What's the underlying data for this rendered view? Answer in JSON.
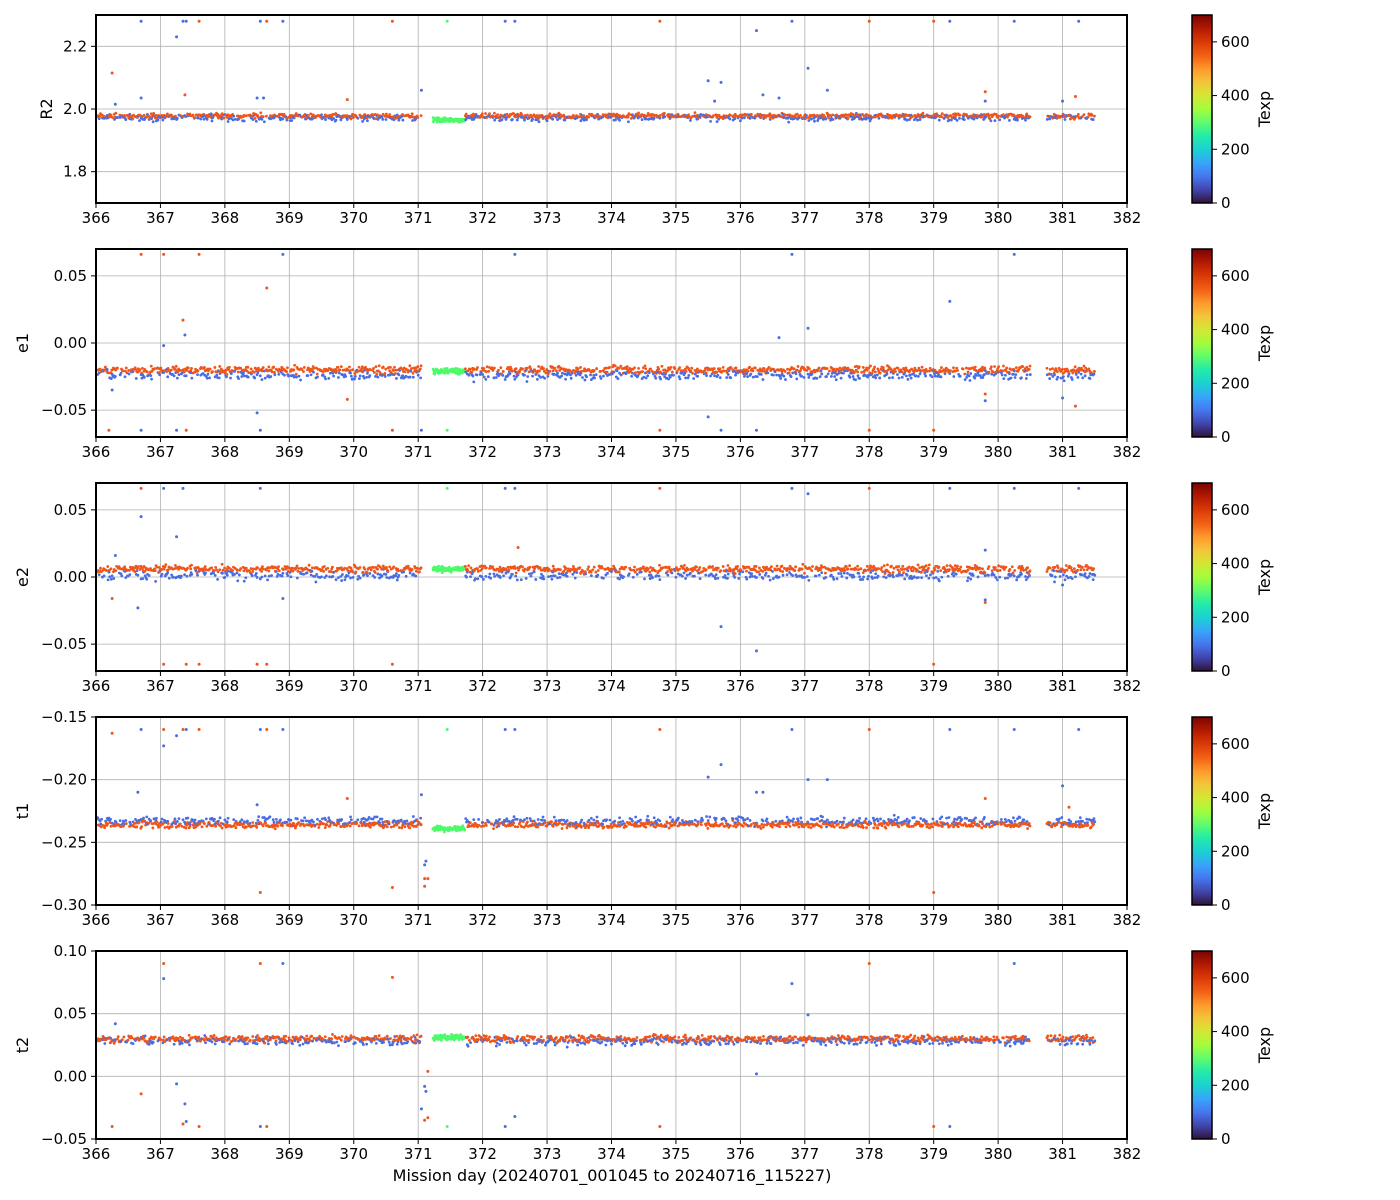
{
  "chart_data": {
    "type": "scatter",
    "shared_xlabel": "Mission day (20240701_001045 to 20240716_115227)",
    "xlim": [
      366,
      382
    ],
    "x_ticks": [
      366,
      367,
      368,
      369,
      370,
      371,
      372,
      373,
      374,
      375,
      376,
      377,
      378,
      379,
      380,
      381,
      382
    ],
    "grid": true,
    "colorbar": {
      "label": "Texp",
      "range": [
        0,
        700
      ],
      "ticks": [
        0,
        200,
        400,
        600
      ],
      "colormap": "turbo"
    },
    "series_colors": {
      "texp_60": "#4a6ee0",
      "texp_600": "#f0561a",
      "texp_300": "#4dfb6a"
    },
    "data_gap": [
      380.5,
      380.75
    ],
    "panels": [
      {
        "ylabel": "R2",
        "ylim": [
          1.7,
          2.3
        ],
        "y_ticks": [
          1.8,
          2.0,
          2.2
        ],
        "y_tick_labels": [
          "1.8",
          "2.0",
          "2.2"
        ],
        "band_orange": 1.978,
        "band_blue": 1.972,
        "band_green": 1.965,
        "spread": 0.012,
        "outliers": [
          [
            366.25,
            2.115,
            "o"
          ],
          [
            366.3,
            2.015,
            "b"
          ],
          [
            366.7,
            2.035,
            "b"
          ],
          [
            366.7,
            2.28,
            "b"
          ],
          [
            367.25,
            2.23,
            "b"
          ],
          [
            367.35,
            2.28,
            "b"
          ],
          [
            367.38,
            2.045,
            "o"
          ],
          [
            367.4,
            2.28,
            "b"
          ],
          [
            367.6,
            2.28,
            "o"
          ],
          [
            368.5,
            2.035,
            "b"
          ],
          [
            368.55,
            2.28,
            "b"
          ],
          [
            368.6,
            2.035,
            "b"
          ],
          [
            368.65,
            2.28,
            "o"
          ],
          [
            368.9,
            2.28,
            "b"
          ],
          [
            369.9,
            2.03,
            "o"
          ],
          [
            370.6,
            2.28,
            "o"
          ],
          [
            371.05,
            2.06,
            "b"
          ],
          [
            371.45,
            2.28,
            "g"
          ],
          [
            372.35,
            2.28,
            "b"
          ],
          [
            372.5,
            2.28,
            "b"
          ],
          [
            374.75,
            2.28,
            "o"
          ],
          [
            375.5,
            2.09,
            "b"
          ],
          [
            375.6,
            2.025,
            "b"
          ],
          [
            375.7,
            2.085,
            "b"
          ],
          [
            376.25,
            2.25,
            "b"
          ],
          [
            376.35,
            2.045,
            "b"
          ],
          [
            376.6,
            2.035,
            "b"
          ],
          [
            376.8,
            2.28,
            "b"
          ],
          [
            377.05,
            2.13,
            "b"
          ],
          [
            377.35,
            2.06,
            "b"
          ],
          [
            378.0,
            2.28,
            "o"
          ],
          [
            379.0,
            2.28,
            "o"
          ],
          [
            379.25,
            2.28,
            "b"
          ],
          [
            379.8,
            2.055,
            "o"
          ],
          [
            379.8,
            2.025,
            "b"
          ],
          [
            380.25,
            2.28,
            "b"
          ],
          [
            381.0,
            2.025,
            "b"
          ],
          [
            381.2,
            2.04,
            "o"
          ],
          [
            381.25,
            2.28,
            "b"
          ]
        ]
      },
      {
        "ylabel": "e1",
        "ylim": [
          -0.07,
          0.07
        ],
        "y_ticks": [
          -0.05,
          0.0,
          0.05
        ],
        "y_tick_labels": [
          "−0.05",
          "0.00",
          "0.05"
        ],
        "band_orange": -0.02,
        "band_blue": -0.024,
        "band_green": -0.021,
        "spread": 0.004,
        "outliers": [
          [
            366.2,
            -0.065,
            "o"
          ],
          [
            366.25,
            -0.035,
            "b"
          ],
          [
            366.7,
            0.066,
            "o"
          ],
          [
            366.7,
            -0.065,
            "b"
          ],
          [
            367.05,
            0.066,
            "o"
          ],
          [
            367.05,
            -0.002,
            "b"
          ],
          [
            367.25,
            -0.065,
            "b"
          ],
          [
            367.35,
            0.017,
            "o"
          ],
          [
            367.38,
            0.006,
            "b"
          ],
          [
            367.4,
            -0.065,
            "o"
          ],
          [
            367.6,
            0.066,
            "o"
          ],
          [
            368.5,
            -0.052,
            "b"
          ],
          [
            368.55,
            -0.065,
            "b"
          ],
          [
            368.65,
            0.041,
            "o"
          ],
          [
            368.9,
            0.066,
            "b"
          ],
          [
            369.9,
            -0.042,
            "o"
          ],
          [
            370.6,
            -0.065,
            "o"
          ],
          [
            371.05,
            -0.065,
            "b"
          ],
          [
            371.45,
            -0.065,
            "g"
          ],
          [
            372.5,
            0.066,
            "b"
          ],
          [
            374.75,
            -0.065,
            "o"
          ],
          [
            375.5,
            -0.055,
            "b"
          ],
          [
            375.7,
            -0.065,
            "b"
          ],
          [
            376.25,
            -0.065,
            "b"
          ],
          [
            376.6,
            0.004,
            "b"
          ],
          [
            376.8,
            0.066,
            "b"
          ],
          [
            377.05,
            0.011,
            "b"
          ],
          [
            378.0,
            -0.065,
            "o"
          ],
          [
            379.0,
            -0.065,
            "o"
          ],
          [
            379.25,
            0.031,
            "b"
          ],
          [
            379.8,
            -0.038,
            "o"
          ],
          [
            379.8,
            -0.043,
            "b"
          ],
          [
            380.25,
            0.066,
            "b"
          ],
          [
            381.0,
            -0.041,
            "b"
          ],
          [
            381.2,
            -0.047,
            "o"
          ]
        ]
      },
      {
        "ylabel": "e2",
        "ylim": [
          -0.07,
          0.07
        ],
        "y_ticks": [
          -0.05,
          0.0,
          0.05
        ],
        "y_tick_labels": [
          "−0.05",
          "0.00",
          "0.05"
        ],
        "band_orange": 0.006,
        "band_blue": 0.001,
        "band_green": 0.006,
        "spread": 0.004,
        "outliers": [
          [
            366.25,
            -0.016,
            "o"
          ],
          [
            366.3,
            0.016,
            "b"
          ],
          [
            366.7,
            0.066,
            "o"
          ],
          [
            366.7,
            0.045,
            "b"
          ],
          [
            366.65,
            -0.023,
            "b"
          ],
          [
            367.05,
            0.066,
            "b"
          ],
          [
            367.05,
            -0.065,
            "o"
          ],
          [
            367.25,
            0.03,
            "b"
          ],
          [
            367.35,
            0.066,
            "b"
          ],
          [
            367.4,
            -0.065,
            "o"
          ],
          [
            367.6,
            -0.065,
            "o"
          ],
          [
            368.5,
            -0.065,
            "o"
          ],
          [
            368.55,
            0.066,
            "b"
          ],
          [
            368.65,
            -0.065,
            "o"
          ],
          [
            368.9,
            -0.016,
            "b"
          ],
          [
            370.6,
            -0.065,
            "o"
          ],
          [
            371.45,
            0.066,
            "g"
          ],
          [
            372.35,
            0.066,
            "b"
          ],
          [
            372.5,
            0.066,
            "b"
          ],
          [
            372.55,
            0.022,
            "o"
          ],
          [
            374.75,
            0.066,
            "o"
          ],
          [
            375.7,
            -0.037,
            "b"
          ],
          [
            376.25,
            -0.055,
            "b"
          ],
          [
            376.8,
            0.066,
            "b"
          ],
          [
            377.05,
            0.062,
            "b"
          ],
          [
            378.0,
            0.066,
            "o"
          ],
          [
            379.0,
            -0.065,
            "o"
          ],
          [
            379.25,
            0.066,
            "b"
          ],
          [
            379.8,
            -0.019,
            "o"
          ],
          [
            379.8,
            -0.017,
            "b"
          ],
          [
            379.8,
            0.02,
            "b"
          ],
          [
            380.25,
            0.066,
            "b"
          ],
          [
            381.0,
            -0.006,
            "b"
          ],
          [
            381.25,
            0.066,
            "b"
          ]
        ]
      },
      {
        "ylabel": "t1",
        "ylim": [
          -0.3,
          -0.15
        ],
        "y_ticks": [
          -0.3,
          -0.25,
          -0.2,
          -0.15
        ],
        "y_tick_labels": [
          "−0.30",
          "−0.25",
          "−0.20",
          "−0.15"
        ],
        "band_orange": -0.236,
        "band_blue": -0.233,
        "band_green": -0.239,
        "spread": 0.004,
        "outliers": [
          [
            366.25,
            -0.163,
            "o"
          ],
          [
            366.7,
            -0.16,
            "b"
          ],
          [
            366.65,
            -0.21,
            "b"
          ],
          [
            367.05,
            -0.16,
            "o"
          ],
          [
            367.05,
            -0.173,
            "b"
          ],
          [
            367.25,
            -0.165,
            "b"
          ],
          [
            367.35,
            -0.16,
            "o"
          ],
          [
            367.4,
            -0.16,
            "b"
          ],
          [
            367.6,
            -0.16,
            "o"
          ],
          [
            368.5,
            -0.22,
            "b"
          ],
          [
            368.55,
            -0.29,
            "o"
          ],
          [
            368.55,
            -0.16,
            "b"
          ],
          [
            368.65,
            -0.16,
            "o"
          ],
          [
            368.9,
            -0.16,
            "b"
          ],
          [
            369.9,
            -0.215,
            "o"
          ],
          [
            370.6,
            -0.286,
            "o"
          ],
          [
            371.05,
            -0.212,
            "b"
          ],
          [
            371.1,
            -0.268,
            "b"
          ],
          [
            371.12,
            -0.265,
            "b"
          ],
          [
            371.1,
            -0.279,
            "o"
          ],
          [
            371.15,
            -0.279,
            "o"
          ],
          [
            371.1,
            -0.285,
            "o"
          ],
          [
            371.45,
            -0.16,
            "g"
          ],
          [
            372.35,
            -0.16,
            "b"
          ],
          [
            372.5,
            -0.16,
            "b"
          ],
          [
            374.75,
            -0.16,
            "o"
          ],
          [
            375.5,
            -0.198,
            "b"
          ],
          [
            375.7,
            -0.188,
            "b"
          ],
          [
            376.25,
            -0.21,
            "b"
          ],
          [
            376.35,
            -0.21,
            "b"
          ],
          [
            376.8,
            -0.16,
            "b"
          ],
          [
            377.05,
            -0.2,
            "b"
          ],
          [
            377.35,
            -0.2,
            "b"
          ],
          [
            378.0,
            -0.16,
            "o"
          ],
          [
            379.0,
            -0.29,
            "o"
          ],
          [
            379.25,
            -0.16,
            "b"
          ],
          [
            379.8,
            -0.215,
            "o"
          ],
          [
            380.25,
            -0.16,
            "b"
          ],
          [
            381.0,
            -0.205,
            "b"
          ],
          [
            381.1,
            -0.222,
            "o"
          ],
          [
            381.25,
            -0.16,
            "b"
          ]
        ]
      },
      {
        "ylabel": "t2",
        "ylim": [
          -0.05,
          0.1
        ],
        "y_ticks": [
          -0.05,
          0.0,
          0.05,
          0.1
        ],
        "y_tick_labels": [
          "−0.05",
          "0.00",
          "0.05",
          "0.10"
        ],
        "band_orange": 0.03,
        "band_blue": 0.028,
        "band_green": 0.031,
        "spread": 0.004,
        "outliers": [
          [
            366.25,
            -0.04,
            "o"
          ],
          [
            366.3,
            0.042,
            "b"
          ],
          [
            366.7,
            -0.014,
            "o"
          ],
          [
            367.05,
            0.09,
            "o"
          ],
          [
            367.05,
            0.078,
            "b"
          ],
          [
            367.25,
            -0.006,
            "b"
          ],
          [
            367.35,
            -0.038,
            "o"
          ],
          [
            367.38,
            -0.022,
            "b"
          ],
          [
            367.4,
            -0.036,
            "b"
          ],
          [
            367.6,
            -0.04,
            "o"
          ],
          [
            368.55,
            0.09,
            "o"
          ],
          [
            368.55,
            -0.04,
            "b"
          ],
          [
            368.65,
            -0.04,
            "o"
          ],
          [
            368.9,
            0.09,
            "b"
          ],
          [
            370.6,
            0.079,
            "o"
          ],
          [
            371.05,
            -0.026,
            "b"
          ],
          [
            371.1,
            -0.008,
            "b"
          ],
          [
            371.12,
            -0.012,
            "b"
          ],
          [
            371.1,
            -0.035,
            "o"
          ],
          [
            371.15,
            -0.033,
            "o"
          ],
          [
            371.15,
            0.004,
            "o"
          ],
          [
            371.45,
            -0.04,
            "g"
          ],
          [
            372.35,
            -0.04,
            "b"
          ],
          [
            372.5,
            -0.032,
            "b"
          ],
          [
            374.75,
            -0.04,
            "o"
          ],
          [
            376.25,
            0.002,
            "b"
          ],
          [
            376.8,
            0.074,
            "b"
          ],
          [
            377.05,
            0.049,
            "b"
          ],
          [
            378.0,
            0.09,
            "o"
          ],
          [
            379.0,
            -0.04,
            "o"
          ],
          [
            379.25,
            -0.04,
            "b"
          ],
          [
            380.25,
            0.09,
            "b"
          ]
        ]
      }
    ]
  }
}
